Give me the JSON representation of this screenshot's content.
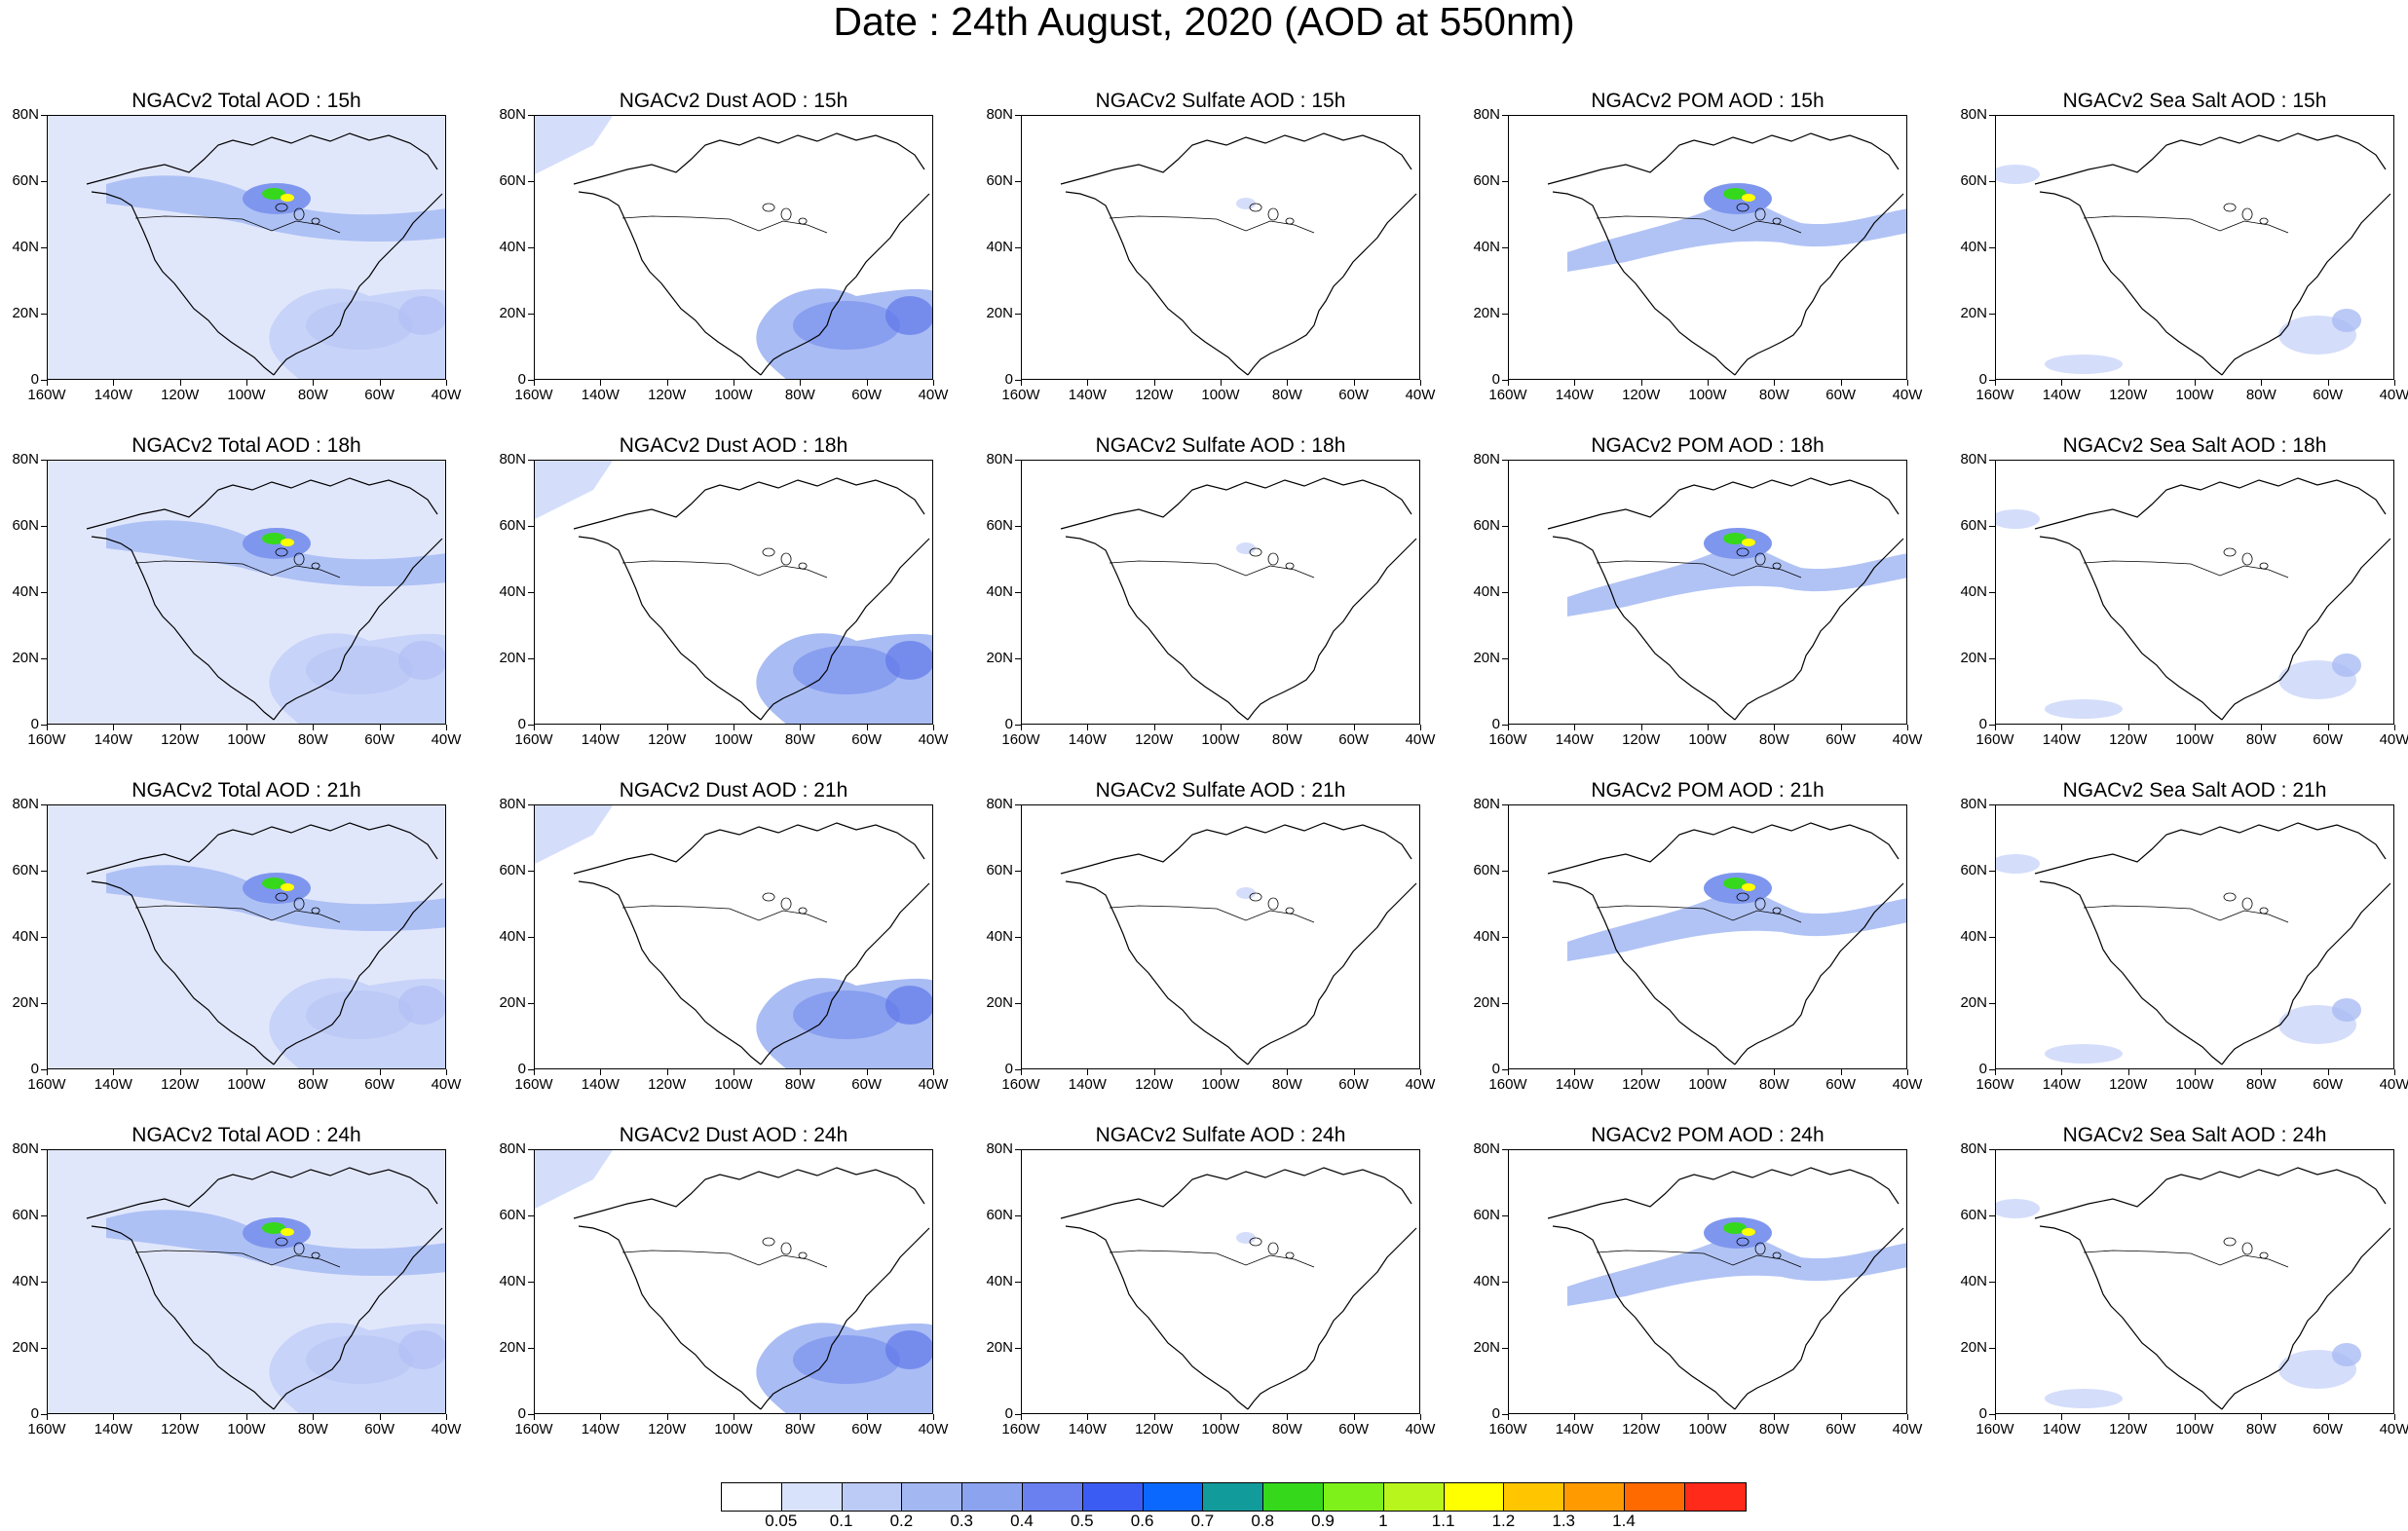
{
  "title": "Date : 24th August, 2020 (AOD at 550nm)",
  "panels": [
    [
      "NGACv2 Total AOD : 15h",
      "NGACv2 Dust AOD : 15h",
      "NGACv2 Sulfate AOD : 15h",
      "NGACv2 POM AOD : 15h",
      "NGACv2 Sea Salt AOD : 15h"
    ],
    [
      "NGACv2 Total AOD : 18h",
      "NGACv2 Dust AOD : 18h",
      "NGACv2 Sulfate AOD : 18h",
      "NGACv2 POM AOD : 18h",
      "NGACv2 Sea Salt AOD : 18h"
    ],
    [
      "NGACv2 Total AOD : 21h",
      "NGACv2 Dust AOD : 21h",
      "NGACv2 Sulfate AOD : 21h",
      "NGACv2 POM AOD : 21h",
      "NGACv2 Sea Salt AOD : 21h"
    ],
    [
      "NGACv2 Total AOD : 24h",
      "NGACv2 Dust AOD : 24h",
      "NGACv2 Sulfate AOD : 24h",
      "NGACv2 POM AOD : 24h",
      "NGACv2 Sea Salt  AOD : 24h"
    ]
  ],
  "axes": {
    "lat_labels": [
      "80N",
      "60N",
      "40N",
      "20N",
      "0"
    ],
    "lon_labels": [
      "160W",
      "140W",
      "120W",
      "100W",
      "80W",
      "60W",
      "40W"
    ]
  },
  "colorbar": {
    "labels": [
      "0.05",
      "0.1",
      "0.2",
      "0.3",
      "0.4",
      "0.5",
      "0.6",
      "0.7",
      "0.8",
      "0.9",
      "1",
      "1.1",
      "1.2",
      "1.3",
      "1.4"
    ],
    "colors": [
      "#ffffff",
      "#d9e2fb",
      "#bccbf6",
      "#a3b8f3",
      "#8ca3f0",
      "#6a7ff0",
      "#3a5cf2",
      "#0a68ff",
      "#129b9b",
      "#36d81c",
      "#7ef01a",
      "#b8f51c",
      "#ffff00",
      "#ffc600",
      "#ff9a00",
      "#ff6a00",
      "#ff2a1a"
    ]
  }
}
